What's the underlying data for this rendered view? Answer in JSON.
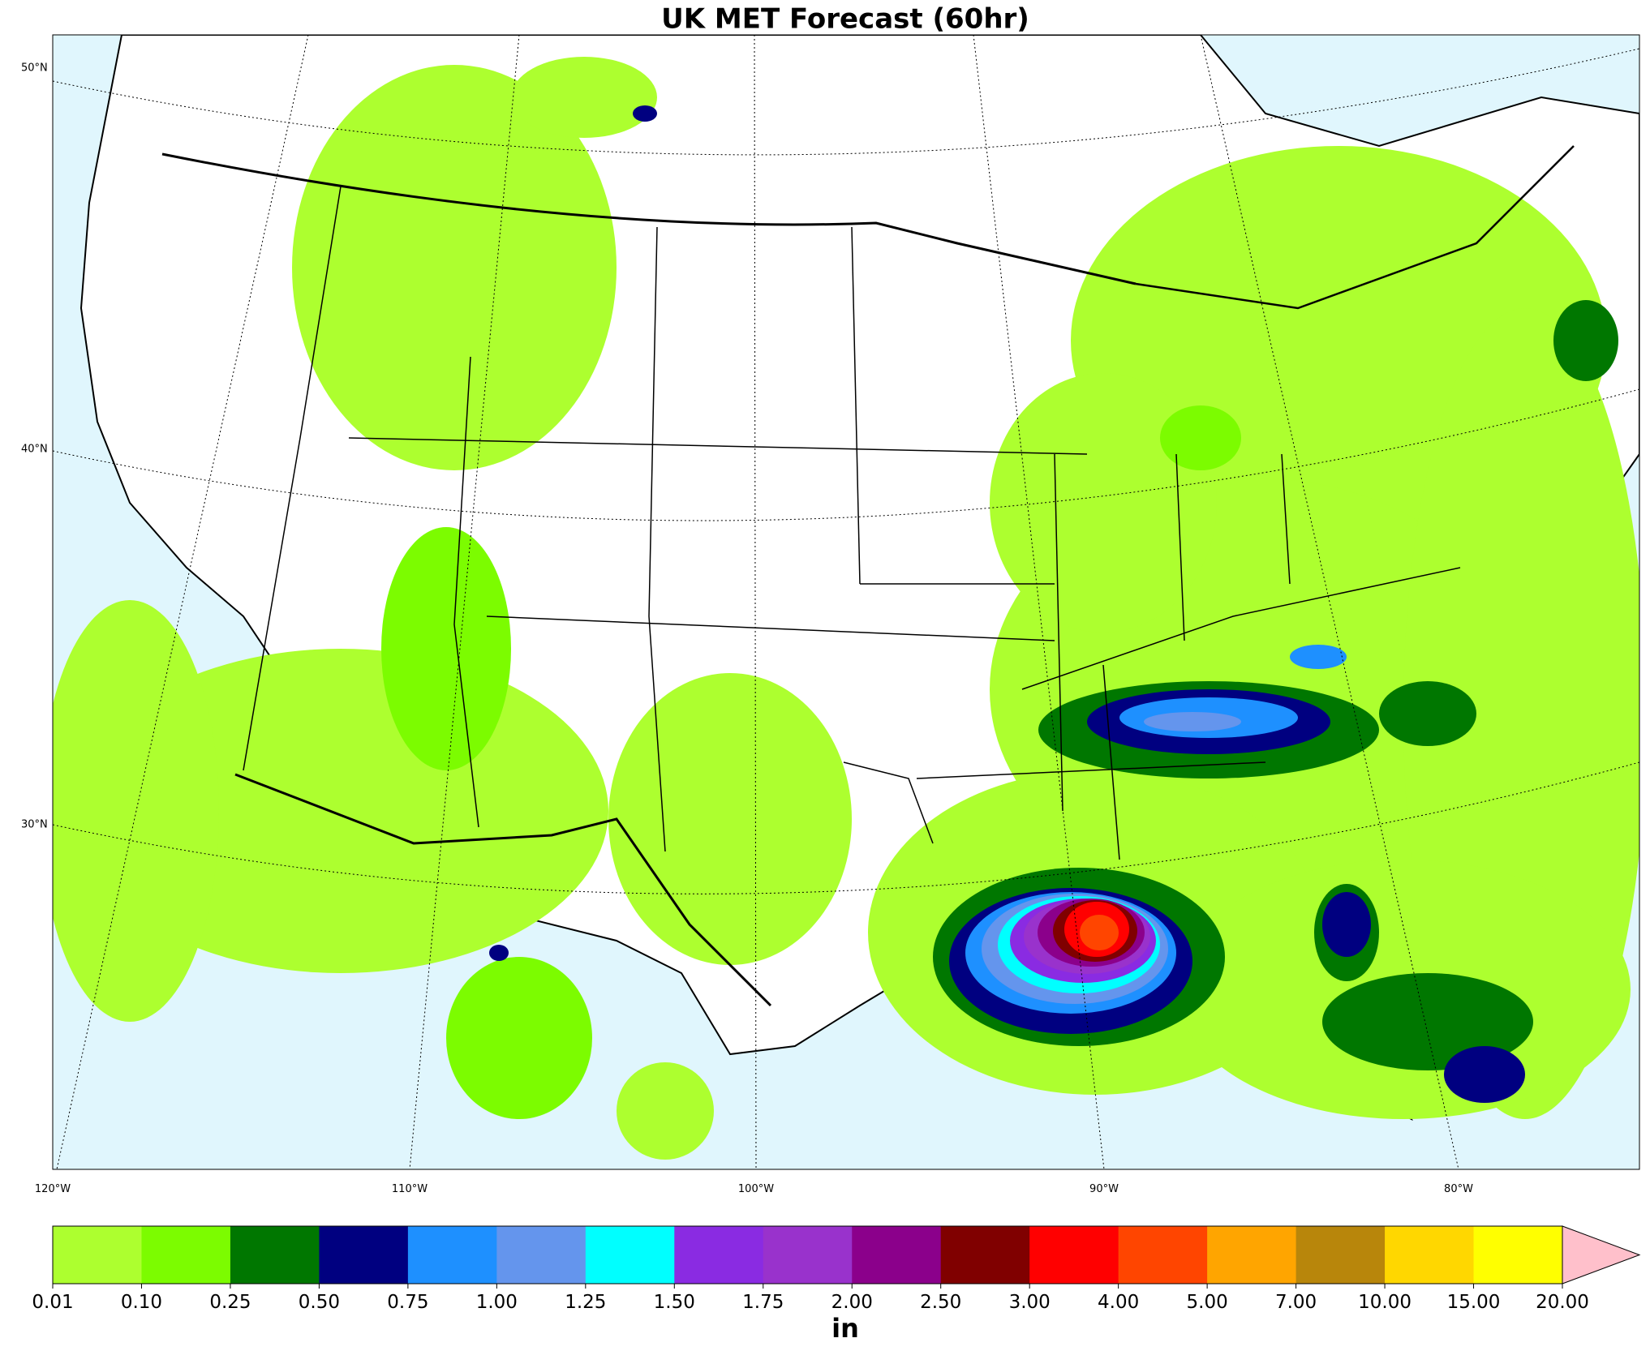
{
  "title": "UK MET Forecast (60hr)",
  "lat_labels": [
    "50°N",
    "40°N",
    "30°N"
  ],
  "lon_labels": [
    "120°W",
    "110°W",
    "100°W",
    "90°W",
    "80°W"
  ],
  "colorbar": {
    "label": "in",
    "ticks": [
      "0.01",
      "0.10",
      "0.25",
      "0.50",
      "0.75",
      "1.00",
      "1.25",
      "1.50",
      "1.75",
      "2.00",
      "2.50",
      "3.00",
      "4.00",
      "5.00",
      "7.00",
      "10.00",
      "15.00",
      "20.00"
    ],
    "colors": [
      "#adff2f",
      "#7cfc00",
      "#007700",
      "#000080",
      "#1e90ff",
      "#6495ed",
      "#00ffff",
      "#8a2be2",
      "#9932cc",
      "#8b008b",
      "#800000",
      "#ff0000",
      "#ff4500",
      "#ffa500",
      "#b8860b",
      "#ffd700",
      "#ffff00"
    ],
    "extend_color": "#ffc0cb"
  }
}
